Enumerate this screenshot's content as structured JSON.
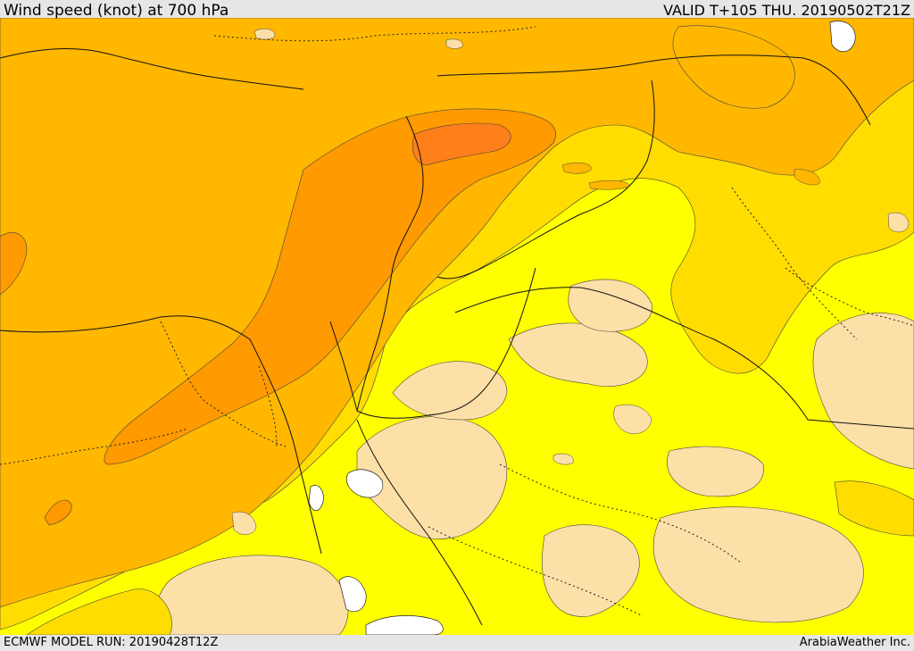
{
  "header": {
    "title": "Wind speed (knot) at 700 hPa",
    "valid_time": "VALID T+105 THU. 20190502T21Z"
  },
  "footer": {
    "model_run": "ECMWF MODEL RUN: 20190428T12Z",
    "credit": "ArabiaWeather Inc."
  },
  "map": {
    "variable": "wind speed",
    "level": "700 hPa",
    "units": "knot",
    "colors": {
      "sea_white": "#ffffff",
      "band_lowest": "#fde0a8",
      "band_low": "#ffff00",
      "band_mid": "#ffdd00",
      "band_high": "#ffb700",
      "band_higher": "#ff9a00",
      "band_highest": "#ff7f1a"
    }
  }
}
